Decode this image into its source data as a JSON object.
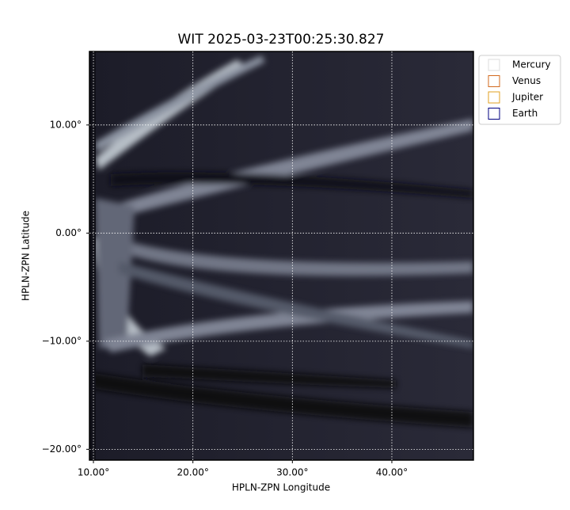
{
  "chart_data": {
    "type": "image",
    "title": "WIT 2025-03-23T00:25:30.827",
    "x_label": "HPLN-ZPN Longitude",
    "y_label": "HPLN-ZPN Latitude",
    "xlim": [
      9.6,
      48.2
    ],
    "ylim": [
      -21,
      16.8
    ],
    "xticks": [
      {
        "value": 10,
        "label": "10.00°"
      },
      {
        "value": 20,
        "label": "20.00°"
      },
      {
        "value": 30,
        "label": "30.00°"
      },
      {
        "value": 40,
        "label": "40.00°"
      }
    ],
    "yticks": [
      {
        "value": -20,
        "label": "−20.00°"
      },
      {
        "value": -10,
        "label": "−10.00°"
      },
      {
        "value": 0,
        "label": "0.00°"
      },
      {
        "value": 10,
        "label": "10.00°"
      }
    ],
    "grid": true,
    "legend_position": "upper right outside",
    "legend": [
      {
        "name": "Mercury",
        "color": "#dddddd"
      },
      {
        "name": "Venus",
        "color": "#d2691e"
      },
      {
        "name": "Jupiter",
        "color": "#e0a020"
      },
      {
        "name": "Earth",
        "color": "#000080"
      }
    ]
  }
}
